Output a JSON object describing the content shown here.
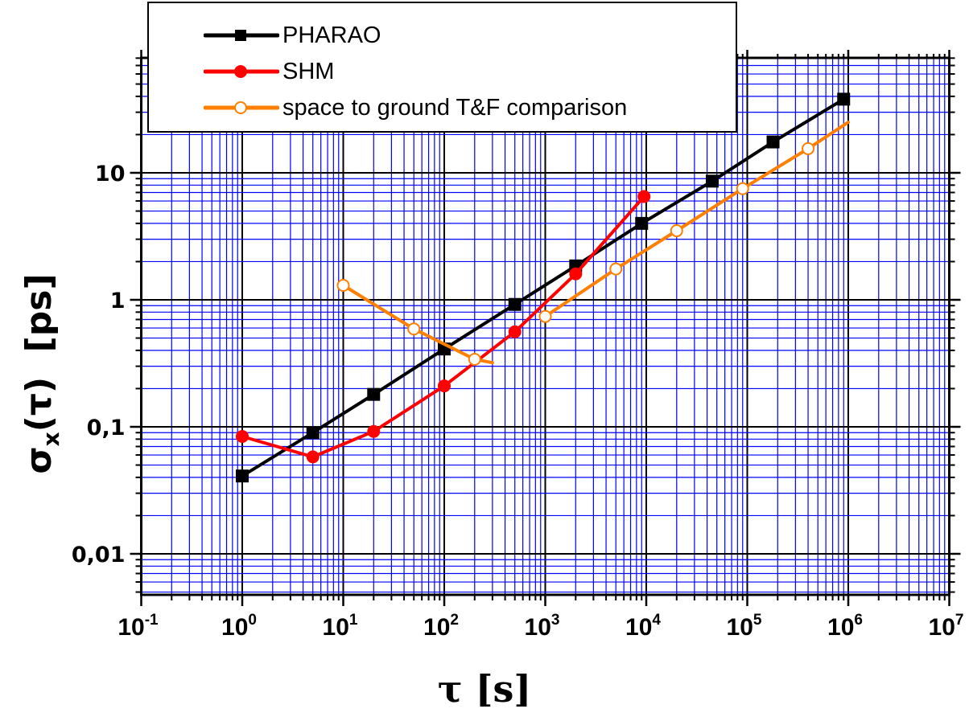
{
  "chart_data": {
    "type": "line",
    "title": "",
    "xlabel": "τ [s]",
    "ylabel": "σx(τ) [ps]",
    "xscale": "log",
    "yscale": "log",
    "xlim": [
      0.1,
      10000000
    ],
    "ylim": [
      0.004,
      50
    ],
    "grid": true,
    "legend_position": "top (inside, upper left)",
    "x_tick_labels": [
      "10^-1",
      "10^0",
      "10^1",
      "10^2",
      "10^3",
      "10^4",
      "10^5",
      "10^6",
      "10^7"
    ],
    "y_tick_labels": [
      "0,01",
      "0,1",
      "1",
      "10"
    ],
    "series": [
      {
        "name": "PHARAO",
        "color": "#000000",
        "marker": "filled-square",
        "x": [
          1,
          5,
          20,
          100,
          500,
          2000,
          9000,
          45000,
          180000,
          900000
        ],
        "y": [
          0.041,
          0.09,
          0.18,
          0.41,
          0.92,
          1.85,
          4.0,
          8.6,
          17.5,
          38
        ]
      },
      {
        "name": "SHM",
        "color": "#ff0000",
        "marker": "filled-circle",
        "x": [
          1,
          5,
          20,
          100,
          500,
          2000,
          9500
        ],
        "y": [
          0.084,
          0.058,
          0.092,
          0.21,
          0.56,
          1.6,
          6.5
        ]
      },
      {
        "name": "space to ground T&F comparison",
        "color": "#ff7f00",
        "marker": "open-circle",
        "segments": [
          {
            "x": [
              10,
              50,
              200,
              300
            ],
            "y": [
              1.3,
              0.59,
              0.34,
              0.32
            ],
            "markers_x": [
              10,
              50,
              200
            ]
          },
          {
            "x": [
              1000,
              5000,
              20000,
              90000,
              400000,
              1000000
            ],
            "y": [
              0.74,
              1.75,
              3.5,
              7.5,
              15.5,
              25
            ],
            "markers_x": [
              1000,
              5000,
              20000,
              90000,
              400000
            ]
          }
        ],
        "x": [
          10,
          50,
          200,
          1000,
          5000,
          20000,
          90000,
          400000
        ],
        "y": [
          1.3,
          0.59,
          0.34,
          0.74,
          1.75,
          3.5,
          7.5,
          15.5
        ]
      }
    ]
  },
  "legend": {
    "items": [
      {
        "label": "PHARAO",
        "color": "#000000",
        "marker": "square"
      },
      {
        "label": "SHM",
        "color": "#ff0000",
        "marker": "circle"
      },
      {
        "label": "space to ground T&F comparison",
        "color": "#ff7f00",
        "marker": "open-circle"
      }
    ]
  },
  "axes": {
    "xlabel_symbol": "τ [s]",
    "ylabel_main": "σ",
    "ylabel_sub": "x",
    "ylabel_rest": "(τ)  [ps]",
    "grid_color": "#0000ff",
    "major_grid_color": "#000000"
  }
}
